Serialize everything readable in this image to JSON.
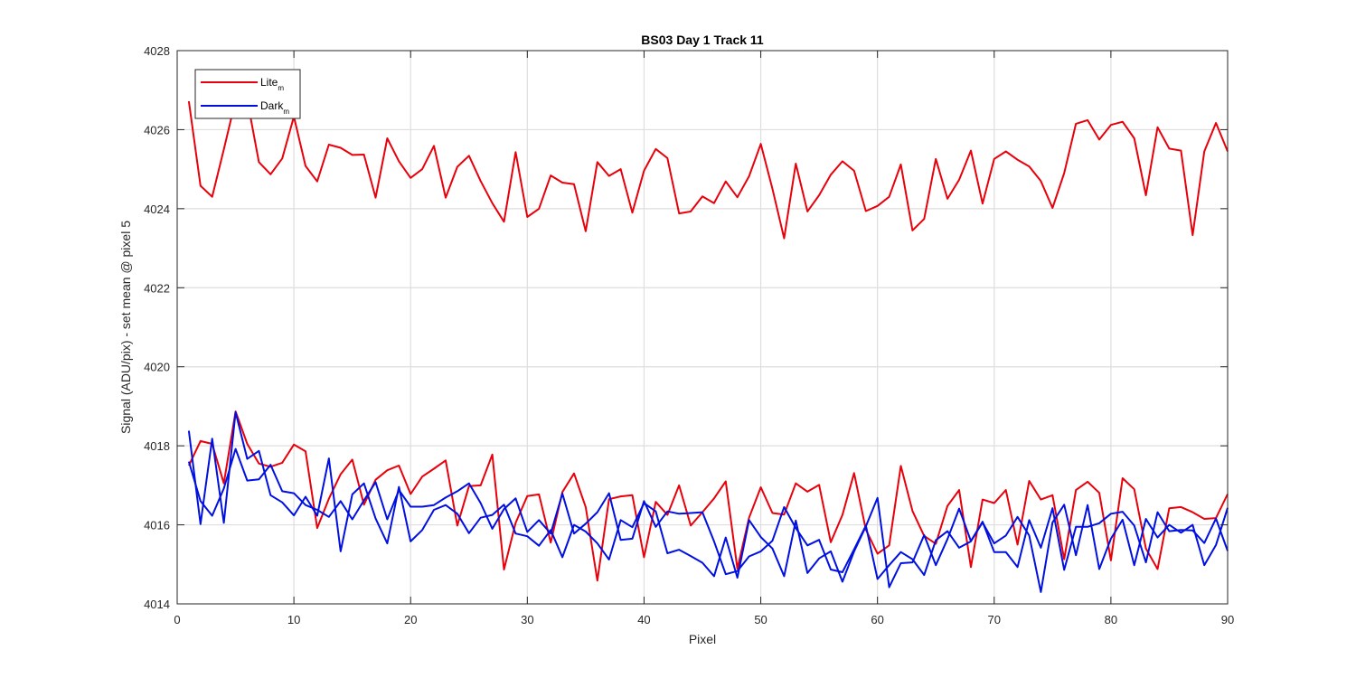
{
  "chart_data": {
    "type": "line",
    "title": "BS03 Day 1 Track 11",
    "xlabel": "Pixel",
    "ylabel": "Signal (ADU/pix) - set mean @ pixel 5",
    "xlim": [
      0,
      90
    ],
    "ylim": [
      4014,
      4028
    ],
    "xticks": [
      0,
      10,
      20,
      30,
      40,
      50,
      60,
      70,
      80,
      90
    ],
    "yticks": [
      4014,
      4016,
      4018,
      4020,
      4022,
      4024,
      4026,
      4028
    ],
    "grid": true,
    "legend_position": "top-left",
    "legend": [
      {
        "base": "Lite",
        "sub": "m",
        "color": "#e8000b"
      },
      {
        "base": "Dark",
        "sub": "m",
        "color": "#0010e0"
      }
    ],
    "x": [
      1,
      2,
      3,
      4,
      5,
      6,
      7,
      8,
      9,
      10,
      11,
      12,
      13,
      14,
      15,
      16,
      17,
      18,
      19,
      20,
      21,
      22,
      23,
      24,
      25,
      26,
      27,
      28,
      29,
      30,
      31,
      32,
      33,
      34,
      35,
      36,
      37,
      38,
      39,
      40,
      41,
      42,
      43,
      44,
      45,
      46,
      47,
      48,
      49,
      50,
      51,
      52,
      53,
      54,
      55,
      56,
      57,
      58,
      59,
      60,
      61,
      62,
      63,
      64,
      65,
      66,
      67,
      68,
      69,
      70,
      71,
      72,
      73,
      74,
      75,
      76,
      77,
      78,
      79,
      80,
      81,
      82,
      83,
      84,
      85,
      86,
      87,
      88,
      89,
      90
    ],
    "series": [
      {
        "legend_index": 0,
        "color": "#e8000b",
        "values": [
          4026.72,
          4024.58,
          4024.3,
          4025.5,
          4026.75,
          4026.76,
          4025.18,
          4024.87,
          4025.27,
          4026.33,
          4025.08,
          4024.69,
          4025.62,
          4025.54,
          4025.36,
          4025.37,
          4024.28,
          4025.78,
          4025.2,
          4024.78,
          4025.0,
          4025.59,
          4024.28,
          4025.06,
          4025.34,
          4024.7,
          4024.14,
          4023.67,
          4025.43,
          4023.79,
          4024.0,
          4024.84,
          4024.66,
          4024.62,
          4023.43,
          4025.18,
          4024.83,
          4025.0,
          4023.9,
          4024.96,
          4025.51,
          4025.28,
          4023.88,
          4023.93,
          4024.31,
          4024.14,
          4024.69,
          4024.29,
          4024.82,
          4025.64,
          4024.5,
          4023.25,
          4025.14,
          4023.93,
          4024.34,
          4024.86,
          4025.2,
          4024.96,
          4023.94,
          4024.07,
          4024.3,
          4025.12,
          4023.45,
          4023.74,
          4025.26,
          4024.25,
          4024.73,
          4025.47,
          4024.13,
          4025.26,
          4025.45,
          4025.24,
          4025.07,
          4024.7,
          4024.02,
          4024.9,
          4026.15,
          4026.24,
          4025.75,
          4026.12,
          4026.2,
          4025.78,
          4024.34,
          4026.06,
          4025.52,
          4025.47,
          4023.33,
          4025.45,
          4026.17,
          4025.45
        ]
      },
      {
        "legend_index": 0,
        "color": "#e8000b",
        "values": [
          4017.5,
          4018.12,
          4018.05,
          4017.05,
          4018.87,
          4018.05,
          4017.55,
          4017.47,
          4017.57,
          4018.03,
          4017.86,
          4015.92,
          4016.66,
          4017.28,
          4017.65,
          4016.51,
          4017.14,
          4017.38,
          4017.5,
          4016.78,
          4017.22,
          4017.42,
          4017.63,
          4015.98,
          4016.98,
          4017.0,
          4017.78,
          4014.87,
          4016.05,
          4016.73,
          4016.77,
          4015.55,
          4016.83,
          4017.3,
          4016.45,
          4014.59,
          4016.65,
          4016.72,
          4016.75,
          4015.18,
          4016.58,
          4016.25,
          4017.0,
          4015.98,
          4016.32,
          4016.67,
          4017.1,
          4014.89,
          4016.18,
          4016.95,
          4016.3,
          4016.26,
          4017.05,
          4016.84,
          4017.01,
          4015.56,
          4016.25,
          4017.31,
          4015.88,
          4015.27,
          4015.48,
          4017.49,
          4016.35,
          4015.72,
          4015.52,
          4016.48,
          4016.88,
          4014.93,
          4016.64,
          4016.55,
          4016.88,
          4015.5,
          4017.11,
          4016.64,
          4016.75,
          4015.13,
          4016.88,
          4017.09,
          4016.81,
          4015.1,
          4017.18,
          4016.9,
          4015.4,
          4014.88,
          4016.42,
          4016.45,
          4016.32,
          4016.15,
          4016.17,
          4016.78
        ]
      },
      {
        "legend_index": 1,
        "color": "#0010e0",
        "values": [
          4018.38,
          4016.02,
          4018.18,
          4016.05,
          4018.85,
          4017.67,
          4017.87,
          4016.75,
          4016.57,
          4016.24,
          4016.71,
          4016.23,
          4017.68,
          4015.33,
          4016.77,
          4017.05,
          4016.16,
          4015.53,
          4016.96,
          4015.58,
          4015.87,
          4016.38,
          4016.5,
          4016.28,
          4015.79,
          4016.18,
          4016.25,
          4016.51,
          4015.78,
          4015.71,
          4015.47,
          4015.87,
          4015.18,
          4016.0,
          4015.83,
          4015.53,
          4015.12,
          4016.12,
          4015.94,
          4016.55,
          4016.34,
          4015.28,
          4015.37,
          4015.21,
          4015.04,
          4014.7,
          4015.68,
          4014.66,
          4016.12,
          4015.69,
          4015.4,
          4014.7,
          4016.11,
          4014.78,
          4015.15,
          4015.33,
          4014.56,
          4015.33,
          4015.96,
          4016.68,
          4014.42,
          4015.03,
          4015.05,
          4015.74,
          4014.98,
          4015.64,
          4016.41,
          4015.59,
          4016.08,
          4015.31,
          4015.31,
          4014.93,
          4016.12,
          4015.42,
          4016.42,
          4014.86,
          4015.95,
          4015.95,
          4016.04,
          4016.28,
          4016.33,
          4015.98,
          4015.05,
          4016.32,
          4015.84,
          4015.87,
          4015.86,
          4015.54,
          4016.16,
          4015.34
        ]
      },
      {
        "legend_index": 1,
        "color": "#0010e0",
        "values": [
          4017.6,
          4016.6,
          4016.23,
          4016.92,
          4017.92,
          4017.12,
          4017.15,
          4017.52,
          4016.85,
          4016.8,
          4016.5,
          4016.38,
          4016.2,
          4016.6,
          4016.14,
          4016.62,
          4017.08,
          4016.14,
          4016.88,
          4016.46,
          4016.46,
          4016.5,
          4016.69,
          4016.85,
          4017.05,
          4016.55,
          4015.9,
          4016.4,
          4016.67,
          4015.82,
          4016.12,
          4015.78,
          4016.79,
          4015.78,
          4016.03,
          4016.32,
          4016.8,
          4015.62,
          4015.65,
          4016.6,
          4015.95,
          4016.34,
          4016.28,
          4016.3,
          4016.32,
          4015.58,
          4014.75,
          4014.83,
          4015.2,
          4015.33,
          4015.6,
          4016.45,
          4015.92,
          4015.48,
          4015.62,
          4014.87,
          4014.8,
          4015.38,
          4015.98,
          4014.63,
          4014.98,
          4015.31,
          4015.13,
          4014.73,
          4015.61,
          4015.84,
          4015.42,
          4015.58,
          4016.06,
          4015.53,
          4015.73,
          4016.2,
          4015.73,
          4014.3,
          4016.06,
          4016.51,
          4015.23,
          4016.5,
          4014.88,
          4015.65,
          4016.13,
          4014.98,
          4016.15,
          4015.68,
          4016.0,
          4015.8,
          4016.0,
          4014.98,
          4015.49,
          4016.43
        ]
      }
    ]
  }
}
